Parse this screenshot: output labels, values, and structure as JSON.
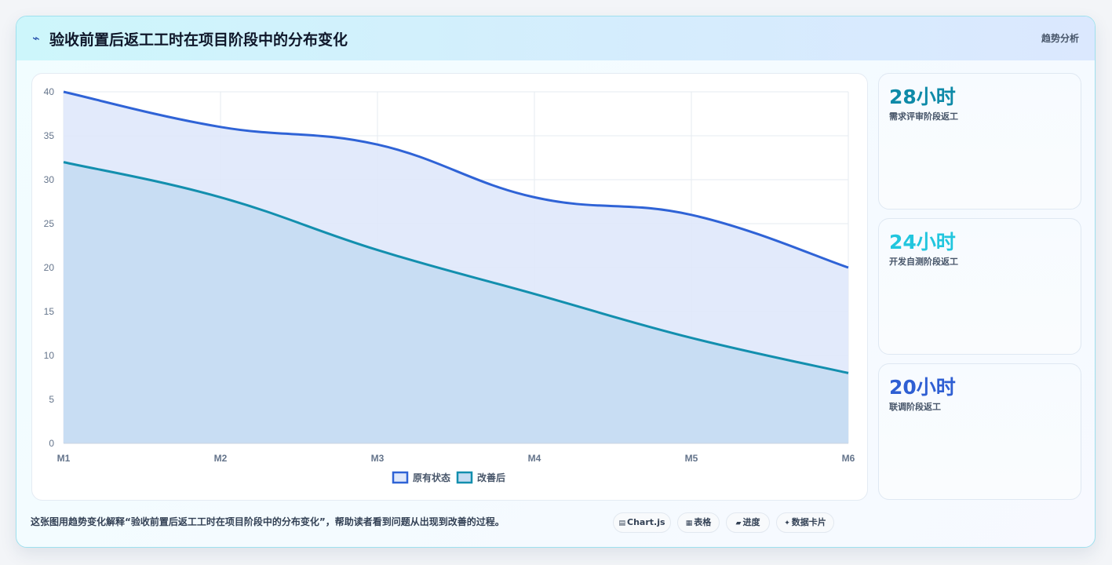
{
  "header": {
    "icon": "⌁",
    "title": "验收前置后返工工时在项目阶段中的分布变化",
    "tag": "趋势分析"
  },
  "kpis": [
    {
      "value": "28小时",
      "label": "需求评审阶段返工",
      "color": "#0e8aa8"
    },
    {
      "value": "24小时",
      "label": "开发自测阶段返工",
      "color": "#22c6de"
    },
    {
      "value": "20小时",
      "label": "联调阶段返工",
      "color": "#2f5fd3"
    }
  ],
  "caption": "这张图用趋势变化解释“验收前置后返工工时在项目阶段中的分布变化”，帮助读者看到问题从出现到改善的过程。",
  "chips": [
    {
      "icon": "▤",
      "label": "Chart.js"
    },
    {
      "icon": "▦",
      "label": "表格"
    },
    {
      "icon": "▰",
      "label": "进度"
    },
    {
      "icon": "✦",
      "label": "数据卡片"
    }
  ],
  "chart_data": {
    "type": "area",
    "categories": [
      "M1",
      "M2",
      "M3",
      "M4",
      "M5",
      "M6"
    ],
    "series": [
      {
        "name": "原有状态",
        "values": [
          40,
          36,
          34,
          28,
          26,
          20
        ],
        "color": "#2f63d6",
        "fill": "#dfe8fb"
      },
      {
        "name": "改善后",
        "values": [
          32,
          28,
          22,
          17,
          12,
          8
        ],
        "color": "#138fae",
        "fill": "#c5dcf2"
      }
    ],
    "ylim": [
      0,
      40
    ],
    "yticks": [
      0,
      5,
      10,
      15,
      20,
      25,
      30,
      35,
      40
    ],
    "grid": true,
    "legend_position": "bottom-center"
  }
}
